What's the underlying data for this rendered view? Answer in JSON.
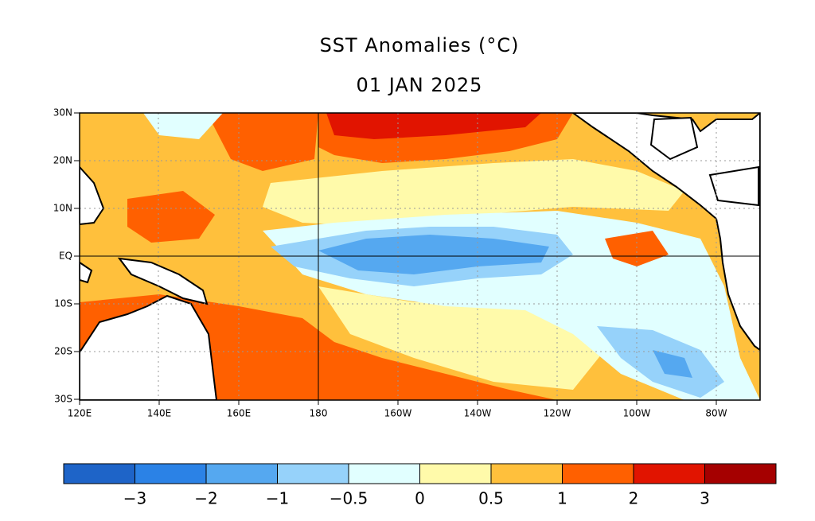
{
  "title": "SST Anomalies (°C)",
  "date": "01 JAN 2025",
  "map": {
    "lat_labels": [
      "30N",
      "20N",
      "10N",
      "EQ",
      "10S",
      "20S",
      "30S"
    ],
    "lon_labels": [
      "120E",
      "140E",
      "160E",
      "180",
      "160W",
      "140W",
      "120W",
      "100W",
      "80W"
    ]
  },
  "legend": {
    "colors": [
      "#1e64c8",
      "#2b82e6",
      "#55a8f0",
      "#96d2fa",
      "#e1ffff",
      "#fffaaa",
      "#ffc03c",
      "#ff6000",
      "#e11400",
      "#a50000"
    ],
    "labels": [
      "−3",
      "−2",
      "−1",
      "−0.5",
      "0",
      "0.5",
      "1",
      "2",
      "3"
    ]
  }
}
